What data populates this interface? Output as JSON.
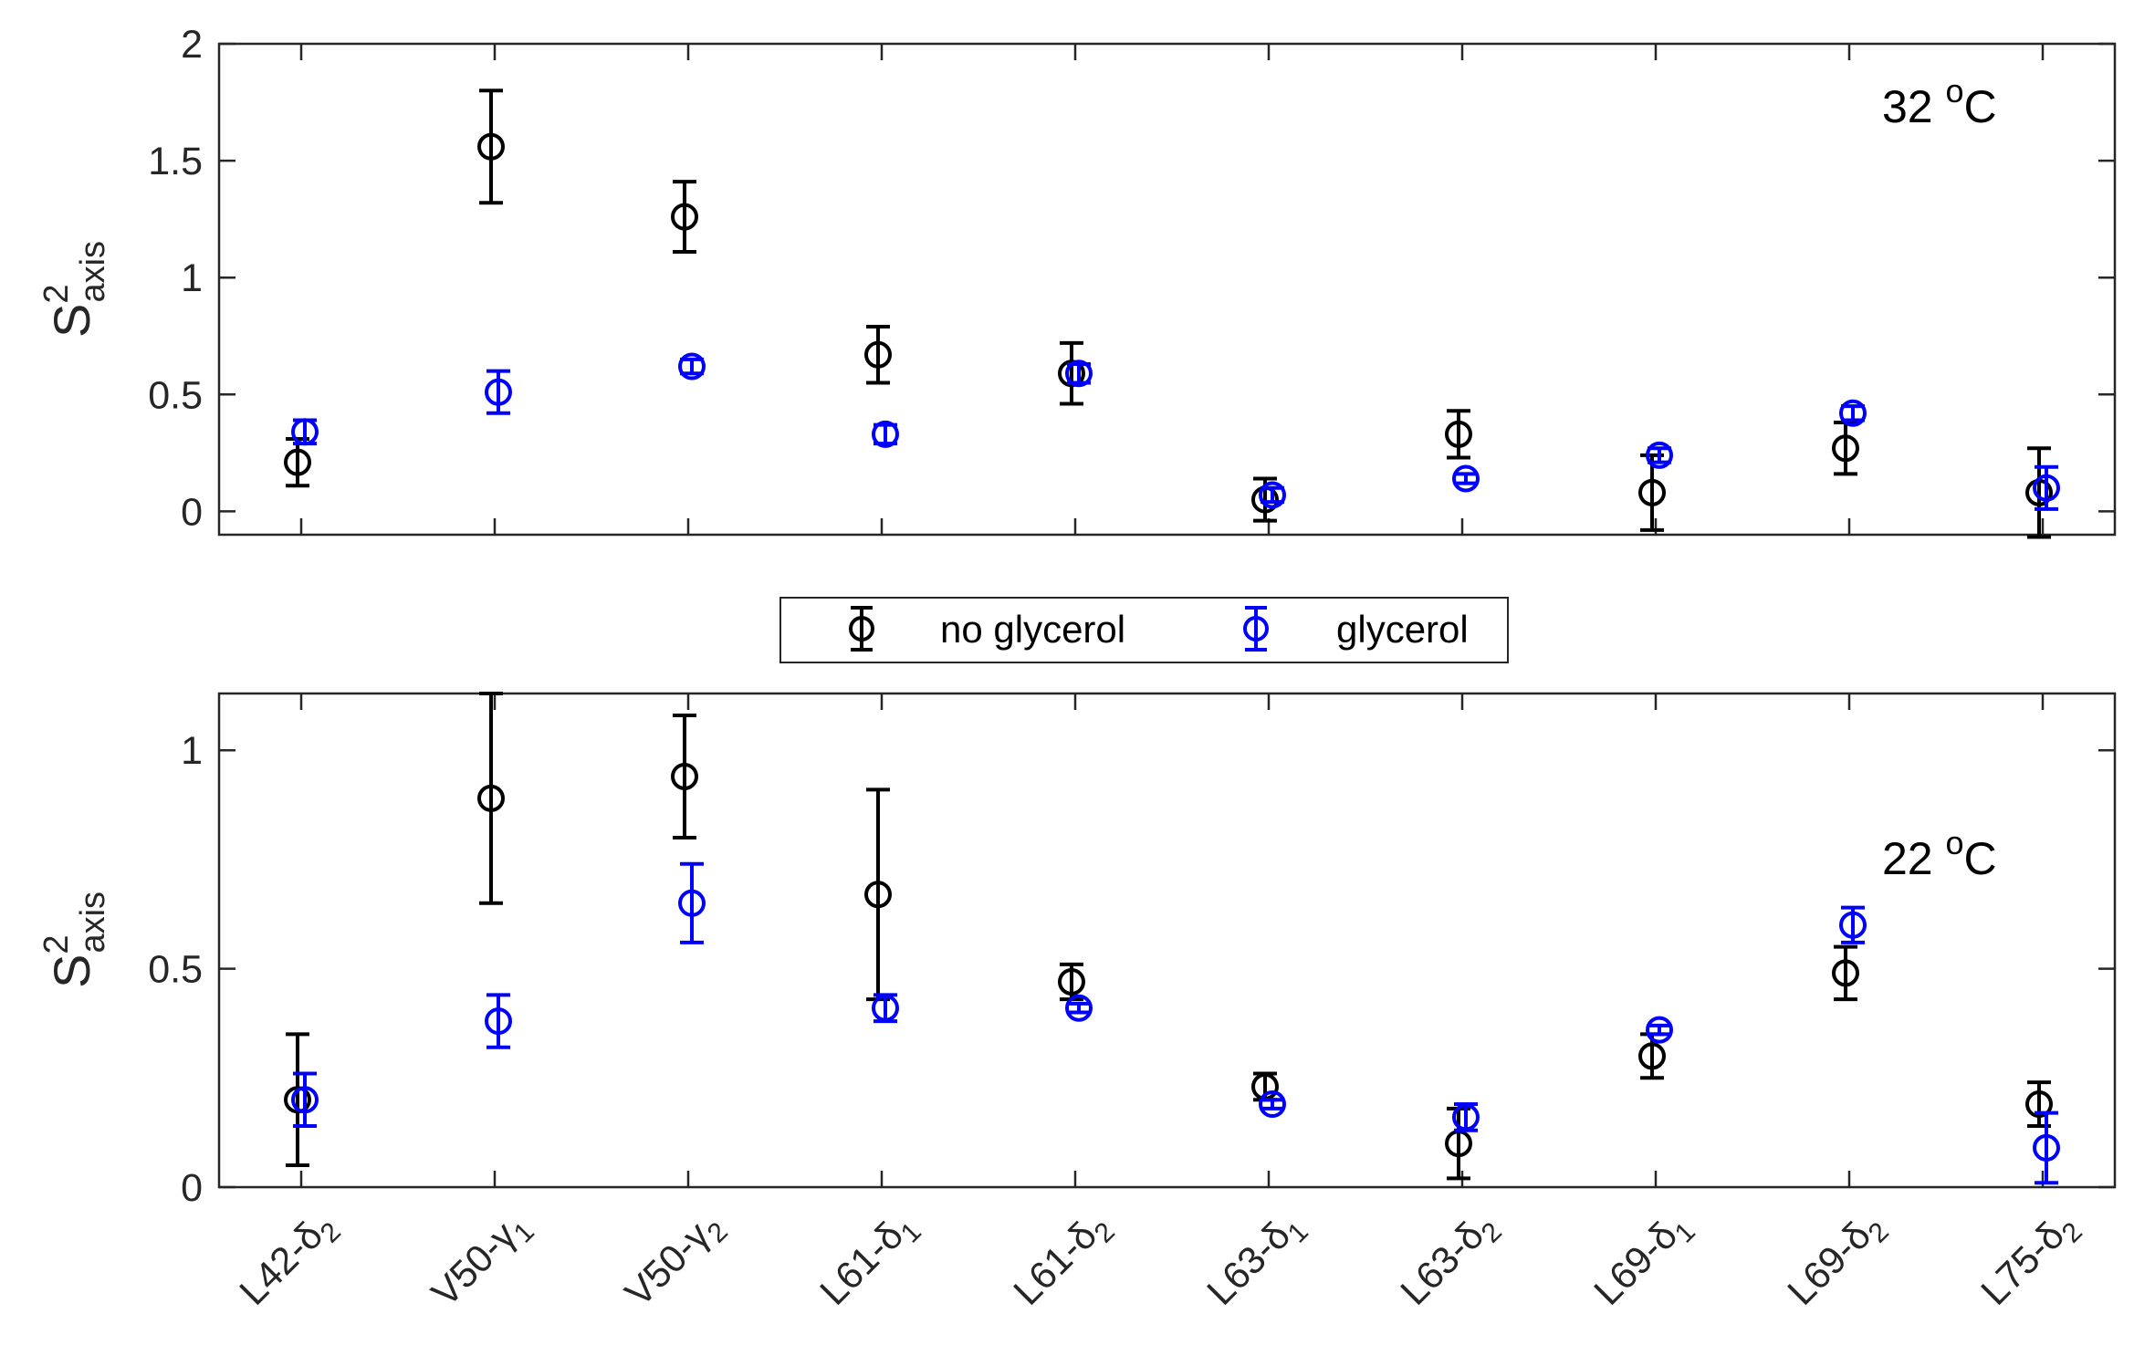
{
  "chart_data": [
    {
      "type": "scatter",
      "panel": "top",
      "annotation": {
        "value": "32 ",
        "sup": "o",
        "unit": "C"
      },
      "ylabel": {
        "main": "S",
        "sup": "2",
        "sub": "axis"
      },
      "ylim": [
        -0.1,
        2.0
      ],
      "yticks": [
        0,
        0.5,
        1,
        1.5,
        2
      ],
      "ytick_labels": [
        "0",
        "0.5",
        "1",
        "1.5",
        "2"
      ],
      "grid": false,
      "series": [
        {
          "name": "no glycerol",
          "color": "#000000",
          "values": [
            0.21,
            1.56,
            1.26,
            0.67,
            0.59,
            0.05,
            0.33,
            0.08,
            0.27,
            0.08
          ],
          "errors": [
            0.1,
            0.24,
            0.15,
            0.12,
            0.13,
            0.09,
            0.1,
            0.16,
            0.11,
            0.19
          ]
        },
        {
          "name": "glycerol",
          "color": "#0000ff",
          "values": [
            0.34,
            0.51,
            0.62,
            0.33,
            0.59,
            0.07,
            0.14,
            0.24,
            0.42,
            0.1
          ],
          "errors": [
            0.05,
            0.09,
            0.03,
            0.04,
            0.04,
            0.03,
            0.02,
            0.03,
            0.03,
            0.09
          ]
        }
      ]
    },
    {
      "type": "scatter",
      "panel": "bottom",
      "annotation": {
        "value": "22 ",
        "sup": "o",
        "unit": "C"
      },
      "ylabel": {
        "main": "S",
        "sup": "2",
        "sub": "axis"
      },
      "ylim": [
        0,
        1.13
      ],
      "yticks": [
        0,
        0.5,
        1
      ],
      "ytick_labels": [
        "0",
        "0.5",
        "1"
      ],
      "grid": false,
      "series": [
        {
          "name": "no glycerol",
          "color": "#000000",
          "values": [
            0.2,
            0.89,
            0.94,
            0.67,
            0.47,
            0.23,
            0.1,
            0.3,
            0.49,
            0.19
          ],
          "errors": [
            0.15,
            0.24,
            0.14,
            0.24,
            0.04,
            0.03,
            0.08,
            0.05,
            0.06,
            0.05
          ]
        },
        {
          "name": "glycerol",
          "color": "#0000ff",
          "values": [
            0.2,
            0.38,
            0.65,
            0.41,
            0.41,
            0.19,
            0.16,
            0.36,
            0.6,
            0.09
          ],
          "errors": [
            0.06,
            0.06,
            0.09,
            0.03,
            0.01,
            0.01,
            0.03,
            0.01,
            0.04,
            0.08
          ]
        }
      ]
    }
  ],
  "categories": [
    {
      "main": "L42-",
      "greek": "δ",
      "sub": "2"
    },
    {
      "main": "V50-",
      "greek": "γ",
      "sub": "1"
    },
    {
      "main": "V50-",
      "greek": "γ",
      "sub": "2"
    },
    {
      "main": "L61-",
      "greek": "δ",
      "sub": "1"
    },
    {
      "main": "L61-",
      "greek": "δ",
      "sub": "2"
    },
    {
      "main": "L63-",
      "greek": "δ",
      "sub": "1"
    },
    {
      "main": "L63-",
      "greek": "δ",
      "sub": "2"
    },
    {
      "main": "L69-",
      "greek": "δ",
      "sub": "1"
    },
    {
      "main": "L69-",
      "greek": "δ",
      "sub": "2"
    },
    {
      "main": "L75-",
      "greek": "δ",
      "sub": "2"
    }
  ],
  "legend": {
    "position": "between panels, center",
    "entries": [
      {
        "label": "no glycerol",
        "color": "#000000"
      },
      {
        "label": "glycerol",
        "color": "#0000ff"
      }
    ]
  }
}
